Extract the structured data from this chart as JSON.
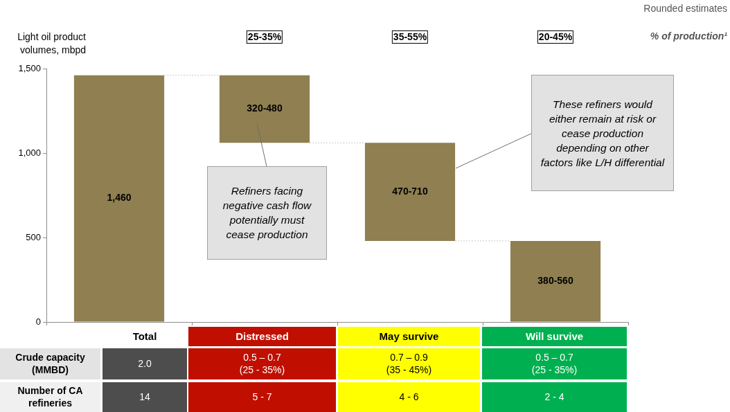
{
  "chart_data": [
    {
      "type": "bar",
      "ylabel": "Light oil product volumes, mbpd",
      "categories": [
        "Total",
        "Distressed",
        "May survive",
        "Will survive"
      ],
      "values": [
        1460,
        400,
        580,
        480
      ],
      "base": [
        0,
        1060,
        480,
        0
      ],
      "color": "#8f7f51",
      "value_labels": [
        "1,460",
        "320-480",
        "470-710",
        "380-560"
      ],
      "ylim": [
        0,
        1500
      ],
      "yticks": [
        0,
        500,
        {
          "value": 1000,
          "label": "1,000"
        },
        {
          "value": 1500,
          "label": "1,500"
        }
      ],
      "grid": false,
      "legend": false,
      "annotations": [
        "Rounded estimates",
        "% of production¹",
        "25-35%",
        "35-55%",
        "20-45%",
        "Refiners facing negative cash flow potentially must cease production",
        "These refiners would either remain at risk or cease production depending on other factors like L/H differential"
      ]
    },
    {
      "type": "other",
      "y_categories": [
        "Crude capacity (MMBD)",
        "Number of CA refineries"
      ],
      "cell_labels": [
        [
          "2.0",
          "0.5 – 0.7\n(25 - 35%)",
          "0.7 – 0.9\n(35 - 45%)",
          "0.5 – 0.7\n(25 - 35%)"
        ],
        [
          "14",
          "5 - 7",
          "4 - 6",
          "2 - 4"
        ]
      ],
      "colors": [
        "#4d4d4d",
        "#c00f00",
        "#ffff00",
        "#00b050"
      ]
    }
  ]
}
